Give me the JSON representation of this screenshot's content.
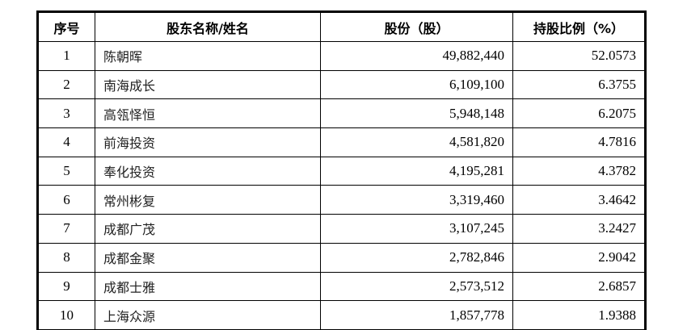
{
  "table": {
    "headers": [
      "序号",
      "股东名称/姓名",
      "股份（股）",
      "持股比例（%）"
    ],
    "rows": [
      {
        "index": "1",
        "name": "陈朝晖",
        "shares": "49,882,440",
        "ratio": "52.0573"
      },
      {
        "index": "2",
        "name": "南海成长",
        "shares": "6,109,100",
        "ratio": "6.3755"
      },
      {
        "index": "3",
        "name": "高瓴怿恒",
        "shares": "5,948,148",
        "ratio": "6.2075"
      },
      {
        "index": "4",
        "name": "前海投资",
        "shares": "4,581,820",
        "ratio": "4.7816"
      },
      {
        "index": "5",
        "name": "奉化投资",
        "shares": "4,195,281",
        "ratio": "4.3782"
      },
      {
        "index": "6",
        "name": "常州彬复",
        "shares": "3,319,460",
        "ratio": "3.4642"
      },
      {
        "index": "7",
        "name": "成都广茂",
        "shares": "3,107,245",
        "ratio": "3.2427"
      },
      {
        "index": "8",
        "name": "成都金聚",
        "shares": "2,782,846",
        "ratio": "2.9042"
      },
      {
        "index": "9",
        "name": "成都士雅",
        "shares": "2,573,512",
        "ratio": "2.6857"
      },
      {
        "index": "10",
        "name": "上海众源",
        "shares": "1,857,778",
        "ratio": "1.9388"
      }
    ]
  }
}
